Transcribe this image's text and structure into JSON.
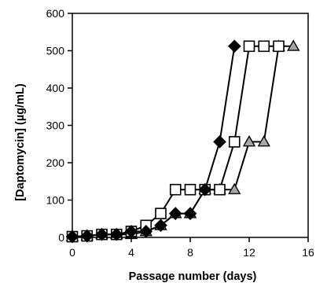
{
  "chart_data": {
    "type": "line",
    "title": "",
    "xlabel": "Passage number (days)",
    "ylabel": "[Daptomycin] (µg/mL)",
    "xlim": [
      0,
      16
    ],
    "ylim": [
      0,
      600
    ],
    "xticks": [
      "0",
      "4",
      "8",
      "12",
      "16"
    ],
    "yticks": [
      "0",
      "100",
      "200",
      "300",
      "400",
      "500",
      "600"
    ],
    "grid": false,
    "legend": "none",
    "series": [
      {
        "marker": "diamond",
        "fill": "#000000",
        "x": [
          0,
          1,
          2,
          3,
          4,
          5,
          6,
          7,
          8,
          9,
          10,
          11
        ],
        "y": [
          2,
          4,
          8,
          8,
          16,
          16,
          32,
          64,
          64,
          128,
          256,
          512
        ]
      },
      {
        "marker": "square",
        "fill": "#ffffff",
        "x": [
          0,
          1,
          2,
          3,
          4,
          5,
          6,
          7,
          8,
          9,
          10,
          11,
          12,
          13,
          14
        ],
        "y": [
          2,
          4,
          8,
          8,
          16,
          32,
          64,
          128,
          128,
          128,
          128,
          256,
          512,
          512,
          512
        ]
      },
      {
        "marker": "triangle",
        "fill": "#a6a6a6",
        "x": [
          0,
          1,
          2,
          3,
          4,
          5,
          6,
          7,
          8,
          9,
          10,
          11,
          12,
          13,
          14,
          15
        ],
        "y": [
          2,
          4,
          8,
          8,
          8,
          16,
          32,
          64,
          64,
          128,
          128,
          128,
          256,
          256,
          512,
          512
        ]
      }
    ]
  }
}
